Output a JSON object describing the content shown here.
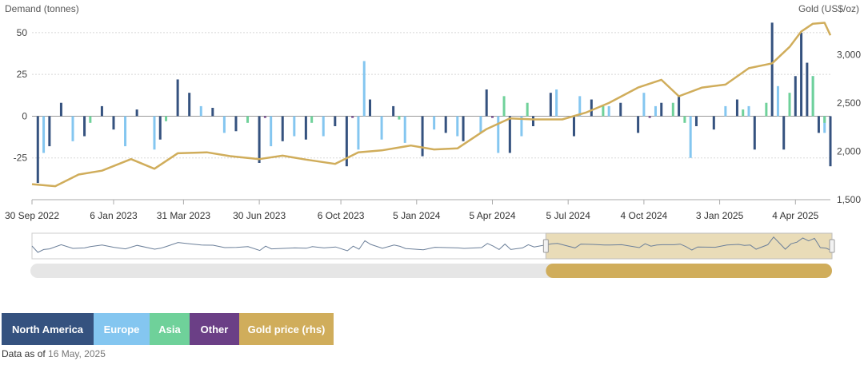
{
  "labels": {
    "y_left_title": "Demand (tonnes)",
    "y_right_title": "Gold (US$/oz)"
  },
  "legend": [
    {
      "label": "North America",
      "color": "#35527f"
    },
    {
      "label": "Europe",
      "color": "#84c6f0"
    },
    {
      "label": "Asia",
      "color": "#6fd19a"
    },
    {
      "label": "Other",
      "color": "#6b3f86"
    },
    {
      "label": "Gold price (rhs)",
      "color": "#d0ad5b"
    }
  ],
  "footer": {
    "prefix": "Data as of",
    "date": "16 May, 2025"
  },
  "navigator": {
    "range_start_date": "2024-06-07",
    "range_end_date": "2025-05-16"
  },
  "chart_data": {
    "type": "bar",
    "subtype": "stacked weekly bars with price line on right axis",
    "x_tick_labels": [
      "30 Sep 2022",
      "6 Jan 2023",
      "31 Mar 2023",
      "30 Jun 2023",
      "6 Oct 2023",
      "5 Jan 2024",
      "5 Apr 2024",
      "5 Jul 2024",
      "4 Oct 2024",
      "3 Jan 2025",
      "4 Apr 2025"
    ],
    "x_tick_dates": [
      "2022-09-30",
      "2023-01-06",
      "2023-03-31",
      "2023-06-30",
      "2023-10-06",
      "2024-01-05",
      "2024-04-05",
      "2024-07-05",
      "2024-10-04",
      "2025-01-03",
      "2025-04-04"
    ],
    "x_range": [
      "2022-09-30",
      "2025-05-16"
    ],
    "y_left": {
      "label": "Demand (tonnes)",
      "ticks": [
        -25,
        0,
        25,
        50
      ],
      "range": [
        -50,
        60
      ]
    },
    "y_right": {
      "label": "Gold (US$/oz)",
      "ticks": [
        "1,500",
        "2,000",
        "2,500",
        "3,000"
      ],
      "range": [
        1500,
        3400
      ]
    },
    "grid": true,
    "series": [
      {
        "name": "North America",
        "color": "#35527f",
        "points": [
          [
            "2022-10-07",
            -40
          ],
          [
            "2022-10-21",
            -18
          ],
          [
            "2022-11-04",
            8
          ],
          [
            "2022-12-02",
            -12
          ],
          [
            "2022-12-23",
            6
          ],
          [
            "2023-01-06",
            -8
          ],
          [
            "2023-02-03",
            4
          ],
          [
            "2023-03-03",
            -14
          ],
          [
            "2023-03-24",
            22
          ],
          [
            "2023-04-07",
            14
          ],
          [
            "2023-05-05",
            5
          ],
          [
            "2023-06-02",
            -9
          ],
          [
            "2023-06-30",
            -28
          ],
          [
            "2023-07-28",
            -15
          ],
          [
            "2023-08-25",
            -14
          ],
          [
            "2023-09-29",
            -6
          ],
          [
            "2023-10-13",
            -30
          ],
          [
            "2023-11-10",
            10
          ],
          [
            "2023-12-08",
            6
          ],
          [
            "2024-01-12",
            -24
          ],
          [
            "2024-02-09",
            -10
          ],
          [
            "2024-03-01",
            -15
          ],
          [
            "2024-03-29",
            16
          ],
          [
            "2024-04-26",
            -22
          ],
          [
            "2024-05-24",
            -6
          ],
          [
            "2024-06-14",
            14
          ],
          [
            "2024-07-12",
            -12
          ],
          [
            "2024-08-02",
            10
          ],
          [
            "2024-09-06",
            8
          ],
          [
            "2024-09-27",
            -10
          ],
          [
            "2024-10-25",
            8
          ],
          [
            "2024-11-15",
            12
          ],
          [
            "2024-12-06",
            -6
          ],
          [
            "2024-12-27",
            -8
          ],
          [
            "2025-01-24",
            10
          ],
          [
            "2025-02-14",
            -20
          ],
          [
            "2025-03-07",
            56
          ],
          [
            "2025-03-21",
            -20
          ],
          [
            "2025-04-04",
            24
          ],
          [
            "2025-04-11",
            50
          ],
          [
            "2025-04-18",
            32
          ],
          [
            "2025-05-02",
            -10
          ],
          [
            "2025-05-16",
            -30
          ]
        ]
      },
      {
        "name": "Europe",
        "color": "#84c6f0",
        "points": [
          [
            "2022-10-14",
            -22
          ],
          [
            "2022-11-18",
            -15
          ],
          [
            "2023-01-20",
            -18
          ],
          [
            "2023-02-24",
            -20
          ],
          [
            "2023-04-21",
            6
          ],
          [
            "2023-05-19",
            -10
          ],
          [
            "2023-07-14",
            -18
          ],
          [
            "2023-08-11",
            -12
          ],
          [
            "2023-09-15",
            -12
          ],
          [
            "2023-10-27",
            -20
          ],
          [
            "2023-11-03",
            33
          ],
          [
            "2023-11-24",
            -14
          ],
          [
            "2023-12-22",
            -16
          ],
          [
            "2024-01-26",
            -8
          ],
          [
            "2024-02-23",
            -12
          ],
          [
            "2024-03-22",
            -10
          ],
          [
            "2024-04-12",
            -22
          ],
          [
            "2024-05-10",
            -12
          ],
          [
            "2024-06-21",
            16
          ],
          [
            "2024-07-19",
            12
          ],
          [
            "2024-08-23",
            6
          ],
          [
            "2024-10-04",
            14
          ],
          [
            "2024-10-18",
            6
          ],
          [
            "2024-11-29",
            -25
          ],
          [
            "2025-01-10",
            6
          ],
          [
            "2025-02-07",
            6
          ],
          [
            "2025-03-14",
            18
          ],
          [
            "2025-04-25",
            24
          ],
          [
            "2025-05-09",
            -10
          ]
        ]
      },
      {
        "name": "Asia",
        "color": "#6fd19a",
        "points": [
          [
            "2022-12-09",
            -4
          ],
          [
            "2023-03-10",
            -3
          ],
          [
            "2023-06-16",
            -4
          ],
          [
            "2023-09-01",
            -4
          ],
          [
            "2023-12-15",
            -2
          ],
          [
            "2024-04-19",
            12
          ],
          [
            "2024-05-17",
            8
          ],
          [
            "2024-08-16",
            6
          ],
          [
            "2024-11-08",
            8
          ],
          [
            "2024-11-22",
            -4
          ],
          [
            "2025-01-31",
            4
          ],
          [
            "2025-02-28",
            8
          ],
          [
            "2025-03-28",
            14
          ],
          [
            "2025-04-25",
            24
          ],
          [
            "2025-05-09",
            -4
          ]
        ]
      },
      {
        "name": "Other",
        "color": "#6b3f86",
        "points": [
          [
            "2023-07-07",
            -1
          ],
          [
            "2023-10-20",
            -1
          ],
          [
            "2024-04-05",
            -1
          ],
          [
            "2024-10-11",
            -1
          ]
        ]
      },
      {
        "name": "Gold price (rhs)",
        "color": "#d0ad5b",
        "axis": "right",
        "points": [
          [
            "2022-09-30",
            1660
          ],
          [
            "2022-10-28",
            1640
          ],
          [
            "2022-11-25",
            1760
          ],
          [
            "2022-12-23",
            1800
          ],
          [
            "2023-01-27",
            1920
          ],
          [
            "2023-02-24",
            1820
          ],
          [
            "2023-03-24",
            1980
          ],
          [
            "2023-04-28",
            1990
          ],
          [
            "2023-05-26",
            1950
          ],
          [
            "2023-06-30",
            1920
          ],
          [
            "2023-07-28",
            1955
          ],
          [
            "2023-08-25",
            1915
          ],
          [
            "2023-09-29",
            1870
          ],
          [
            "2023-10-27",
            1990
          ],
          [
            "2023-11-24",
            2010
          ],
          [
            "2023-12-29",
            2060
          ],
          [
            "2024-01-26",
            2020
          ],
          [
            "2024-02-23",
            2030
          ],
          [
            "2024-03-29",
            2230
          ],
          [
            "2024-04-26",
            2340
          ],
          [
            "2024-05-24",
            2330
          ],
          [
            "2024-06-28",
            2330
          ],
          [
            "2024-07-26",
            2400
          ],
          [
            "2024-08-23",
            2500
          ],
          [
            "2024-09-27",
            2660
          ],
          [
            "2024-10-25",
            2740
          ],
          [
            "2024-11-15",
            2570
          ],
          [
            "2024-12-13",
            2660
          ],
          [
            "2025-01-10",
            2690
          ],
          [
            "2025-02-07",
            2860
          ],
          [
            "2025-03-07",
            2910
          ],
          [
            "2025-03-28",
            3080
          ],
          [
            "2025-04-11",
            3240
          ],
          [
            "2025-04-25",
            3320
          ],
          [
            "2025-05-09",
            3330
          ],
          [
            "2025-05-16",
            3200
          ]
        ]
      }
    ]
  }
}
